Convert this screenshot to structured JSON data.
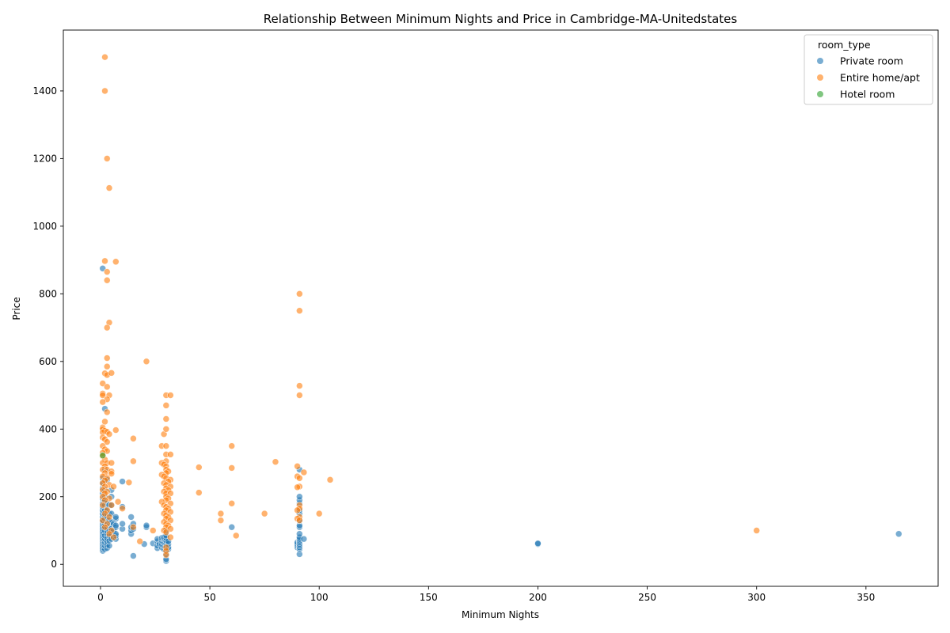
{
  "chart_data": {
    "type": "scatter",
    "title": "Relationship Between Minimum Nights and Price in Cambridge-MA-Unitedstates",
    "xlabel": "Minimum Nights",
    "ylabel": "Price",
    "xlim": [
      -17,
      383
    ],
    "ylim": [
      -65,
      1580
    ],
    "x_ticks": [
      0,
      50,
      100,
      150,
      200,
      250,
      300,
      350
    ],
    "y_ticks": [
      0,
      200,
      400,
      600,
      800,
      1000,
      1200,
      1400
    ],
    "grid": false,
    "legend": {
      "title": "room_type",
      "placement": "top-right"
    },
    "series": [
      {
        "name": "Private room",
        "color": "#1f77b4",
        "points": [
          [
            1,
            875
          ],
          [
            1,
            40
          ],
          [
            1,
            45
          ],
          [
            1,
            50
          ],
          [
            1,
            55
          ],
          [
            1,
            60
          ],
          [
            1,
            65
          ],
          [
            1,
            70
          ],
          [
            1,
            75
          ],
          [
            1,
            80
          ],
          [
            1,
            85
          ],
          [
            1,
            90
          ],
          [
            1,
            95
          ],
          [
            1,
            100
          ],
          [
            1,
            105
          ],
          [
            1,
            110
          ],
          [
            1,
            115
          ],
          [
            1,
            120
          ],
          [
            1,
            125
          ],
          [
            1,
            130
          ],
          [
            1,
            140
          ],
          [
            1,
            150
          ],
          [
            1,
            160
          ],
          [
            1,
            170
          ],
          [
            1,
            180
          ],
          [
            1,
            195
          ],
          [
            1,
            210
          ],
          [
            1,
            225
          ],
          [
            1,
            240
          ],
          [
            1,
            255
          ],
          [
            2,
            460
          ],
          [
            2,
            45
          ],
          [
            2,
            55
          ],
          [
            2,
            65
          ],
          [
            2,
            75
          ],
          [
            2,
            85
          ],
          [
            2,
            100
          ],
          [
            2,
            110
          ],
          [
            2,
            120
          ],
          [
            2,
            135
          ],
          [
            2,
            145
          ],
          [
            2,
            160
          ],
          [
            2,
            175
          ],
          [
            2,
            190
          ],
          [
            2,
            200
          ],
          [
            2,
            220
          ],
          [
            2,
            250
          ],
          [
            2,
            280
          ],
          [
            3,
            48
          ],
          [
            3,
            58
          ],
          [
            3,
            68
          ],
          [
            3,
            78
          ],
          [
            3,
            90
          ],
          [
            3,
            100
          ],
          [
            3,
            110
          ],
          [
            3,
            125
          ],
          [
            3,
            140
          ],
          [
            3,
            150
          ],
          [
            3,
            165
          ],
          [
            3,
            180
          ],
          [
            3,
            250
          ],
          [
            4,
            55
          ],
          [
            4,
            70
          ],
          [
            4,
            85
          ],
          [
            4,
            100
          ],
          [
            4,
            115
          ],
          [
            4,
            130
          ],
          [
            4,
            150
          ],
          [
            4,
            175
          ],
          [
            5,
            75
          ],
          [
            5,
            90
          ],
          [
            5,
            105
          ],
          [
            5,
            125
          ],
          [
            5,
            150
          ],
          [
            5,
            175
          ],
          [
            5,
            200
          ],
          [
            5,
            220
          ],
          [
            6,
            80
          ],
          [
            6,
            100
          ],
          [
            6,
            120
          ],
          [
            7,
            75
          ],
          [
            7,
            85
          ],
          [
            7,
            90
          ],
          [
            7,
            110
          ],
          [
            7,
            115
          ],
          [
            7,
            135
          ],
          [
            7,
            140
          ],
          [
            10,
            105
          ],
          [
            10,
            120
          ],
          [
            10,
            170
          ],
          [
            10,
            245
          ],
          [
            14,
            90
          ],
          [
            14,
            100
          ],
          [
            14,
            110
          ],
          [
            14,
            140
          ],
          [
            15,
            25
          ],
          [
            15,
            105
          ],
          [
            15,
            120
          ],
          [
            20,
            60
          ],
          [
            21,
            110
          ],
          [
            21,
            115
          ],
          [
            24,
            62
          ],
          [
            26,
            48
          ],
          [
            26,
            55
          ],
          [
            26,
            68
          ],
          [
            26,
            75
          ],
          [
            27,
            60
          ],
          [
            28,
            50
          ],
          [
            28,
            60
          ],
          [
            28,
            70
          ],
          [
            28,
            78
          ],
          [
            29,
            45
          ],
          [
            29,
            55
          ],
          [
            29,
            65
          ],
          [
            29,
            75
          ],
          [
            29,
            80
          ],
          [
            30,
            10
          ],
          [
            30,
            15
          ],
          [
            30,
            30
          ],
          [
            30,
            40
          ],
          [
            30,
            48
          ],
          [
            30,
            55
          ],
          [
            30,
            62
          ],
          [
            30,
            70
          ],
          [
            30,
            78
          ],
          [
            30,
            85
          ],
          [
            30,
            100
          ],
          [
            31,
            45
          ],
          [
            31,
            50
          ],
          [
            31,
            60
          ],
          [
            31,
            68
          ],
          [
            60,
            110
          ],
          [
            90,
            50
          ],
          [
            90,
            55
          ],
          [
            90,
            60
          ],
          [
            90,
            65
          ],
          [
            91,
            30
          ],
          [
            91,
            45
          ],
          [
            91,
            50
          ],
          [
            91,
            55
          ],
          [
            91,
            60
          ],
          [
            91,
            65
          ],
          [
            91,
            70
          ],
          [
            91,
            75
          ],
          [
            91,
            80
          ],
          [
            91,
            90
          ],
          [
            91,
            110
          ],
          [
            91,
            115
          ],
          [
            91,
            130
          ],
          [
            91,
            150
          ],
          [
            91,
            160
          ],
          [
            91,
            180
          ],
          [
            91,
            190
          ],
          [
            91,
            200
          ],
          [
            91,
            280
          ],
          [
            93,
            75
          ],
          [
            200,
            60
          ],
          [
            200,
            62
          ],
          [
            365,
            90
          ]
        ]
      },
      {
        "name": "Entire home/apt",
        "color": "#ff7f0e",
        "points": [
          [
            2,
            1500
          ],
          [
            2,
            1400
          ],
          [
            3,
            1200
          ],
          [
            4,
            1113
          ],
          [
            2,
            897
          ],
          [
            7,
            895
          ],
          [
            3,
            865
          ],
          [
            3,
            840
          ],
          [
            4,
            715
          ],
          [
            3,
            700
          ],
          [
            3,
            610
          ],
          [
            3,
            585
          ],
          [
            2,
            565
          ],
          [
            3,
            560
          ],
          [
            5,
            566
          ],
          [
            1,
            535
          ],
          [
            3,
            525
          ],
          [
            1,
            505
          ],
          [
            1,
            500
          ],
          [
            4,
            500
          ],
          [
            3,
            488
          ],
          [
            1,
            480
          ],
          [
            3,
            450
          ],
          [
            2,
            422
          ],
          [
            1,
            405
          ],
          [
            1,
            400
          ],
          [
            2,
            395
          ],
          [
            1,
            390
          ],
          [
            3,
            392
          ],
          [
            4,
            385
          ],
          [
            7,
            397
          ],
          [
            1,
            375
          ],
          [
            2,
            370
          ],
          [
            3,
            362
          ],
          [
            1,
            350
          ],
          [
            2,
            340
          ],
          [
            3,
            335
          ],
          [
            1,
            330
          ],
          [
            1,
            320
          ],
          [
            2,
            310
          ],
          [
            1,
            300
          ],
          [
            3,
            300
          ],
          [
            5,
            300
          ],
          [
            2,
            290
          ],
          [
            1,
            280
          ],
          [
            3,
            280
          ],
          [
            5,
            275
          ],
          [
            2,
            270
          ],
          [
            5,
            268
          ],
          [
            1,
            260
          ],
          [
            3,
            255
          ],
          [
            2,
            248
          ],
          [
            1,
            240
          ],
          [
            4,
            235
          ],
          [
            2,
            230
          ],
          [
            6,
            230
          ],
          [
            1,
            220
          ],
          [
            3,
            215
          ],
          [
            2,
            210
          ],
          [
            1,
            200
          ],
          [
            4,
            195
          ],
          [
            2,
            190
          ],
          [
            8,
            185
          ],
          [
            1,
            175
          ],
          [
            5,
            175
          ],
          [
            3,
            160
          ],
          [
            2,
            150
          ],
          [
            4,
            140
          ],
          [
            1,
            130
          ],
          [
            3,
            120
          ],
          [
            2,
            110
          ],
          [
            5,
            100
          ],
          [
            4,
            90
          ],
          [
            6,
            80
          ],
          [
            10,
            165
          ],
          [
            13,
            242
          ],
          [
            15,
            372
          ],
          [
            15,
            305
          ],
          [
            15,
            110
          ],
          [
            18,
            68
          ],
          [
            21,
            600
          ],
          [
            24,
            100
          ],
          [
            28,
            350
          ],
          [
            29,
            385
          ],
          [
            30,
            500
          ],
          [
            32,
            500
          ],
          [
            30,
            470
          ],
          [
            30,
            430
          ],
          [
            30,
            400
          ],
          [
            30,
            350
          ],
          [
            30,
            325
          ],
          [
            32,
            325
          ],
          [
            30,
            305
          ],
          [
            28,
            300
          ],
          [
            29,
            295
          ],
          [
            30,
            290
          ],
          [
            30,
            280
          ],
          [
            31,
            275
          ],
          [
            30,
            270
          ],
          [
            28,
            265
          ],
          [
            29,
            260
          ],
          [
            30,
            255
          ],
          [
            32,
            250
          ],
          [
            31,
            245
          ],
          [
            29,
            240
          ],
          [
            30,
            235
          ],
          [
            32,
            230
          ],
          [
            30,
            225
          ],
          [
            31,
            220
          ],
          [
            29,
            215
          ],
          [
            30,
            210
          ],
          [
            32,
            210
          ],
          [
            30,
            200
          ],
          [
            31,
            195
          ],
          [
            30,
            190
          ],
          [
            28,
            185
          ],
          [
            32,
            180
          ],
          [
            29,
            175
          ],
          [
            30,
            170
          ],
          [
            31,
            165
          ],
          [
            30,
            160
          ],
          [
            32,
            155
          ],
          [
            29,
            150
          ],
          [
            30,
            145
          ],
          [
            31,
            140
          ],
          [
            30,
            135
          ],
          [
            32,
            130
          ],
          [
            29,
            125
          ],
          [
            30,
            120
          ],
          [
            31,
            115
          ],
          [
            30,
            110
          ],
          [
            32,
            105
          ],
          [
            29,
            100
          ],
          [
            30,
            95
          ],
          [
            32,
            80
          ],
          [
            30,
            50
          ],
          [
            30,
            40
          ],
          [
            30,
            28
          ],
          [
            45,
            287
          ],
          [
            45,
            212
          ],
          [
            55,
            150
          ],
          [
            55,
            130
          ],
          [
            60,
            350
          ],
          [
            60,
            285
          ],
          [
            60,
            180
          ],
          [
            62,
            85
          ],
          [
            75,
            150
          ],
          [
            80,
            303
          ],
          [
            91,
            800
          ],
          [
            91,
            750
          ],
          [
            91,
            528
          ],
          [
            91,
            500
          ],
          [
            90,
            290
          ],
          [
            93,
            272
          ],
          [
            90,
            260
          ],
          [
            91,
            255
          ],
          [
            91,
            230
          ],
          [
            90,
            228
          ],
          [
            91,
            175
          ],
          [
            91,
            165
          ],
          [
            90,
            160
          ],
          [
            91,
            140
          ],
          [
            90,
            135
          ],
          [
            91,
            130
          ],
          [
            100,
            150
          ],
          [
            105,
            250
          ],
          [
            300,
            100
          ]
        ]
      },
      {
        "name": "Hotel room",
        "color": "#2ca02c",
        "points": [
          [
            1,
            322
          ]
        ]
      }
    ]
  }
}
